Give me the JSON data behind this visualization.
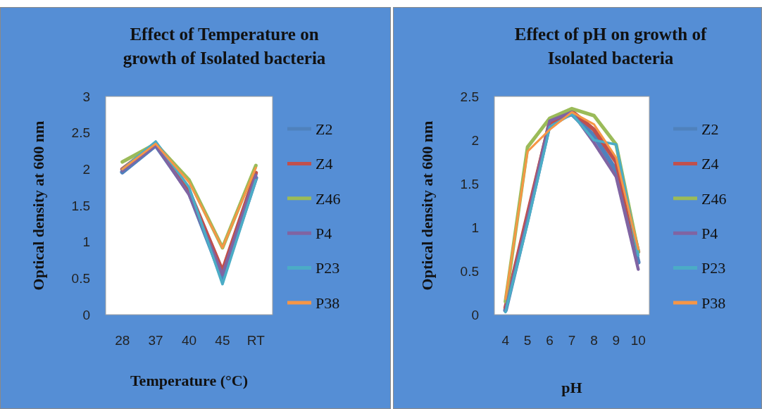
{
  "chart_data": [
    {
      "type": "line",
      "title": "Effect of Temperature on growth of Isolated bacteria",
      "xlabel": "Temperature (°C)",
      "ylabel": "Optical density at 600 nm",
      "categories": [
        "28",
        "37",
        "40",
        "45",
        "RT"
      ],
      "ylim": [
        0,
        3
      ],
      "yticks": [
        0,
        0.5,
        1,
        1.5,
        2,
        2.5,
        3
      ],
      "legend": "right",
      "grid": false,
      "marker": "none",
      "line_style": "solid",
      "series": [
        {
          "name": "Z2",
          "color": "#4f81bd",
          "values": [
            1.96,
            2.33,
            1.68,
            0.5,
            1.88
          ]
        },
        {
          "name": "Z4",
          "color": "#c0504d",
          "values": [
            2.0,
            2.35,
            1.7,
            0.6,
            1.95
          ]
        },
        {
          "name": "Z46",
          "color": "#9bbb59",
          "values": [
            2.1,
            2.35,
            1.85,
            0.92,
            2.05
          ]
        },
        {
          "name": "P4",
          "color": "#8064a2",
          "values": [
            1.98,
            2.33,
            1.65,
            0.55,
            1.92
          ]
        },
        {
          "name": "P23",
          "color": "#4bacc6",
          "values": [
            2.0,
            2.38,
            1.75,
            0.42,
            1.85
          ]
        },
        {
          "name": "P38",
          "color": "#f79646",
          "values": [
            2.0,
            2.35,
            1.82,
            0.92,
            2.02
          ]
        }
      ]
    },
    {
      "type": "line",
      "title": "Effect of pH  on growth of Isolated bacteria",
      "xlabel": "pH",
      "ylabel": "Optical density at 600 nm",
      "categories": [
        "4",
        "5",
        "6",
        "7",
        "8",
        "9",
        "10"
      ],
      "ylim": [
        0,
        2.5
      ],
      "yticks": [
        0,
        0.5,
        1,
        1.5,
        2,
        2.5
      ],
      "legend": "right",
      "grid": false,
      "marker": "none",
      "line_style": "solid",
      "series": [
        {
          "name": "Z2",
          "color": "#4f81bd",
          "values": [
            0.05,
            1.1,
            2.2,
            2.3,
            2.05,
            1.65,
            0.6
          ]
        },
        {
          "name": "Z4",
          "color": "#c0504d",
          "values": [
            0.08,
            1.15,
            2.2,
            2.33,
            2.12,
            1.75,
            0.72
          ]
        },
        {
          "name": "Z46",
          "color": "#9bbb59",
          "values": [
            0.15,
            1.92,
            2.25,
            2.36,
            2.28,
            1.95,
            0.72
          ]
        },
        {
          "name": "P4",
          "color": "#8064a2",
          "values": [
            0.05,
            1.1,
            2.22,
            2.32,
            1.97,
            1.58,
            0.52
          ]
        },
        {
          "name": "P23",
          "color": "#4bacc6",
          "values": [
            0.03,
            1.05,
            2.15,
            2.3,
            2.0,
            1.95,
            0.68
          ]
        },
        {
          "name": "P38",
          "color": "#f79646",
          "values": [
            0.18,
            1.87,
            2.12,
            2.32,
            2.18,
            1.8,
            0.75
          ]
        }
      ]
    }
  ]
}
